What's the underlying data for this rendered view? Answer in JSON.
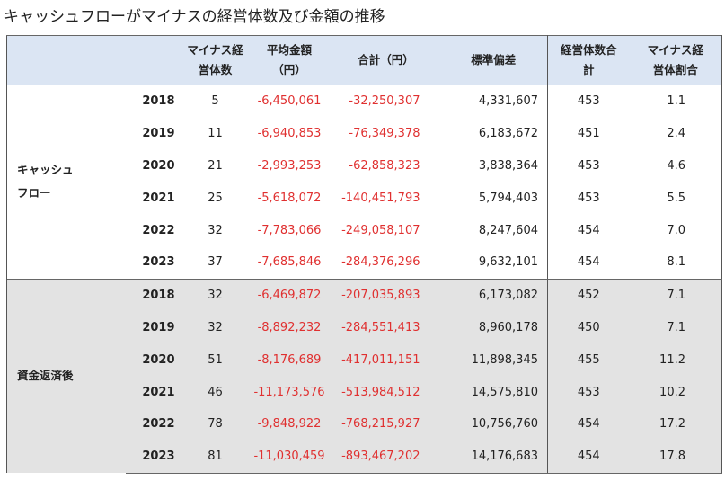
{
  "title": "キャッシュフローがマイナスの経営体数及び金額の推移",
  "headers": {
    "neg_count_l1": "マイナス経",
    "neg_count_l2": "営体数",
    "avg_l1": "平均金額",
    "avg_l2": "（円）",
    "total": "合計（円）",
    "std": "標準偏差",
    "all_l1": "経営体数合",
    "all_l2": "計",
    "ratio_l1": "マイナス経",
    "ratio_l2": "営体割合"
  },
  "groups": [
    {
      "label_l1": "キャッシュ",
      "label_l2": "フロー",
      "rows": [
        {
          "year": "2018",
          "count": "5",
          "avg": "-6,450,061",
          "total": "-32,250,307",
          "std": "4,331,607",
          "all": "453",
          "ratio": "1.1"
        },
        {
          "year": "2019",
          "count": "11",
          "avg": "-6,940,853",
          "total": "-76,349,378",
          "std": "6,183,672",
          "all": "451",
          "ratio": "2.4"
        },
        {
          "year": "2020",
          "count": "21",
          "avg": "-2,993,253",
          "total": "-62,858,323",
          "std": "3,838,364",
          "all": "453",
          "ratio": "4.6"
        },
        {
          "year": "2021",
          "count": "25",
          "avg": "-5,618,072",
          "total": "-140,451,793",
          "std": "5,794,403",
          "all": "453",
          "ratio": "5.5"
        },
        {
          "year": "2022",
          "count": "32",
          "avg": "-7,783,066",
          "total": "-249,058,107",
          "std": "8,247,604",
          "all": "454",
          "ratio": "7.0"
        },
        {
          "year": "2023",
          "count": "37",
          "avg": "-7,685,846",
          "total": "-284,376,296",
          "std": "9,632,101",
          "all": "454",
          "ratio": "8.1"
        }
      ]
    },
    {
      "label_l1": "資金返済後",
      "label_l2": "",
      "rows": [
        {
          "year": "2018",
          "count": "32",
          "avg": "-6,469,872",
          "total": "-207,035,893",
          "std": "6,173,082",
          "all": "452",
          "ratio": "7.1"
        },
        {
          "year": "2019",
          "count": "32",
          "avg": "-8,892,232",
          "total": "-284,551,413",
          "std": "8,960,178",
          "all": "450",
          "ratio": "7.1"
        },
        {
          "year": "2020",
          "count": "51",
          "avg": "-8,176,689",
          "total": "-417,011,151",
          "std": "11,898,345",
          "all": "455",
          "ratio": "11.2"
        },
        {
          "year": "2021",
          "count": "46",
          "avg": "-11,173,576",
          "total": "-513,984,512",
          "std": "14,575,810",
          "all": "453",
          "ratio": "10.2"
        },
        {
          "year": "2022",
          "count": "78",
          "avg": "-9,848,922",
          "total": "-768,215,927",
          "std": "10,756,760",
          "all": "454",
          "ratio": "17.2"
        },
        {
          "year": "2023",
          "count": "81",
          "avg": "-11,030,459",
          "total": "-893,467,202",
          "std": "14,176,683",
          "all": "454",
          "ratio": "17.8"
        }
      ]
    }
  ]
}
